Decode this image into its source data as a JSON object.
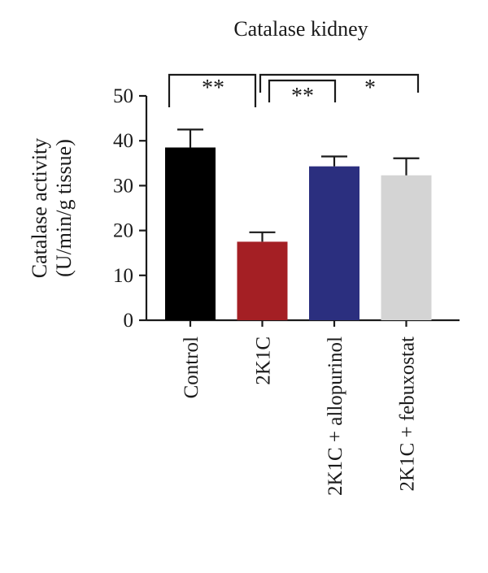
{
  "chart_data": {
    "type": "bar",
    "title": "Catalase kidney",
    "ylabel_line1": "Catalase activity",
    "ylabel_line2": "(U/min/g tissue)",
    "xlabel": "",
    "ylim": [
      0,
      50
    ],
    "yticks": [
      0,
      10,
      20,
      30,
      40,
      50
    ],
    "categories": [
      "Control",
      "2K1C",
      "2K1C + allopurinol",
      "2K1C + febuxostat"
    ],
    "values": [
      38.5,
      17.5,
      34.3,
      32.3
    ],
    "errors": [
      4.0,
      2.1,
      2.2,
      3.8
    ],
    "colors": [
      "#000000",
      "#a41f24",
      "#2b2f7f",
      "#d4d4d4"
    ],
    "significance": [
      {
        "from": 0,
        "to": 1,
        "label": "**"
      },
      {
        "from": 1,
        "to": 2,
        "label": "**"
      },
      {
        "from": 1,
        "to": 3,
        "label": "*"
      }
    ],
    "grid": false,
    "legend": "none"
  }
}
